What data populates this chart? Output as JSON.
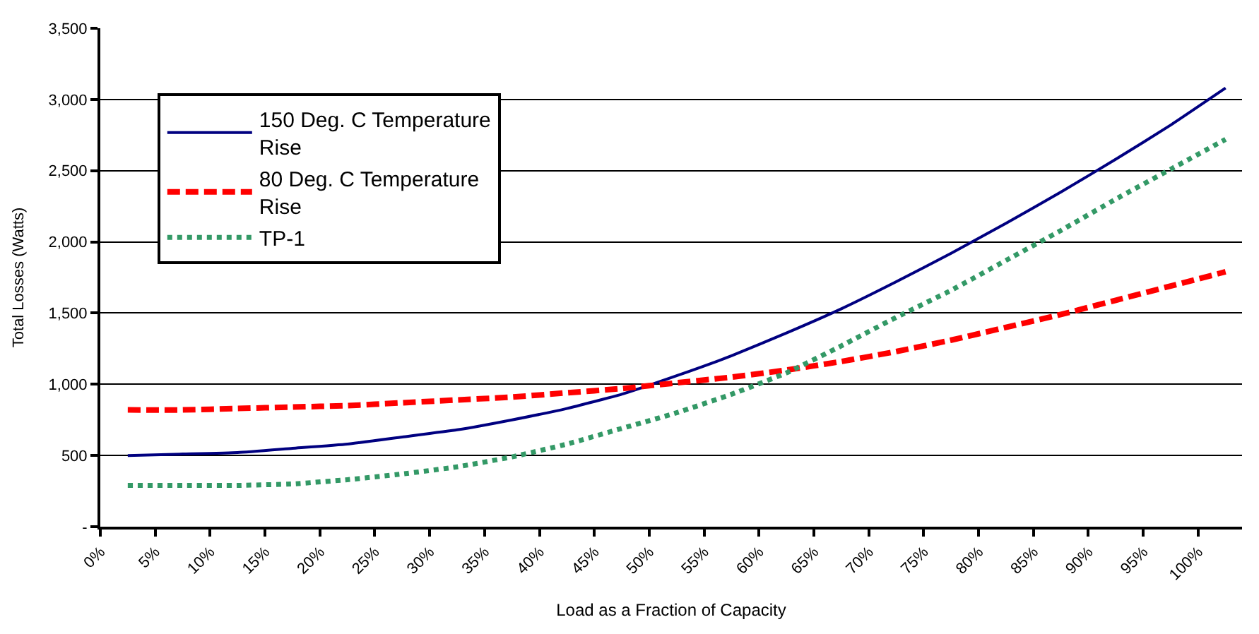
{
  "chart_data": {
    "type": "line",
    "xlabel": "Load as a Fraction of Capacity",
    "ylabel": "Total Losses (Watts)",
    "x": [
      2.5,
      7.5,
      12.5,
      17.5,
      22.5,
      27.5,
      32.5,
      37.5,
      42.5,
      47.5,
      52.5,
      57.5,
      62.5,
      67.5,
      72.5,
      77.5,
      82.5,
      87.5,
      92.5,
      97.5,
      102.5
    ],
    "series": [
      {
        "name": "150 Deg. C Temperature Rise",
        "color": "#000080",
        "line_style": "solid",
        "values": [
          500,
          510,
          520,
          550,
          580,
          630,
          680,
          750,
          830,
          930,
          1060,
          1200,
          1360,
          1530,
          1720,
          1920,
          2130,
          2350,
          2580,
          2820,
          3080
        ]
      },
      {
        "name": "80 Deg. C Temperature Rise",
        "color": "#ff0000",
        "line_style": "dashed",
        "values": [
          820,
          820,
          830,
          840,
          850,
          870,
          890,
          910,
          940,
          970,
          1010,
          1050,
          1100,
          1160,
          1230,
          1310,
          1400,
          1490,
          1590,
          1690,
          1790
        ]
      },
      {
        "name": "TP-1",
        "color": "#339966",
        "line_style": "dotted",
        "values": [
          290,
          290,
          290,
          300,
          330,
          370,
          420,
          490,
          580,
          690,
          800,
          930,
          1080,
          1270,
          1470,
          1660,
          1870,
          2080,
          2300,
          2510,
          2720
        ]
      }
    ],
    "xlim": [
      0,
      104
    ],
    "xticks": [
      {
        "value": 0,
        "label": "0%"
      },
      {
        "value": 5,
        "label": "5%"
      },
      {
        "value": 10,
        "label": "10%"
      },
      {
        "value": 15,
        "label": "15%"
      },
      {
        "value": 20,
        "label": "20%"
      },
      {
        "value": 25,
        "label": "25%"
      },
      {
        "value": 30,
        "label": "30%"
      },
      {
        "value": 35,
        "label": "35%"
      },
      {
        "value": 40,
        "label": "40%"
      },
      {
        "value": 45,
        "label": "45%"
      },
      {
        "value": 50,
        "label": "50%"
      },
      {
        "value": 55,
        "label": "55%"
      },
      {
        "value": 60,
        "label": "60%"
      },
      {
        "value": 65,
        "label": "65%"
      },
      {
        "value": 70,
        "label": "70%"
      },
      {
        "value": 75,
        "label": "75%"
      },
      {
        "value": 80,
        "label": "80%"
      },
      {
        "value": 85,
        "label": "85%"
      },
      {
        "value": 90,
        "label": "90%"
      },
      {
        "value": 95,
        "label": "95%"
      },
      {
        "value": 100,
        "label": "100%"
      }
    ],
    "ylim": [
      0,
      3500
    ],
    "yticks": [
      {
        "value": 0,
        "label": "-"
      },
      500,
      {
        "value": 1000,
        "label": "1,000"
      },
      {
        "value": 1500,
        "label": "1,500"
      },
      {
        "value": 2000,
        "label": "2,000"
      },
      {
        "value": 2500,
        "label": "2,500"
      },
      {
        "value": 3000,
        "label": "3,000"
      },
      {
        "value": 3500,
        "label": "3,500"
      }
    ],
    "grid": "y",
    "legend": "top left",
    "marker": "none"
  }
}
